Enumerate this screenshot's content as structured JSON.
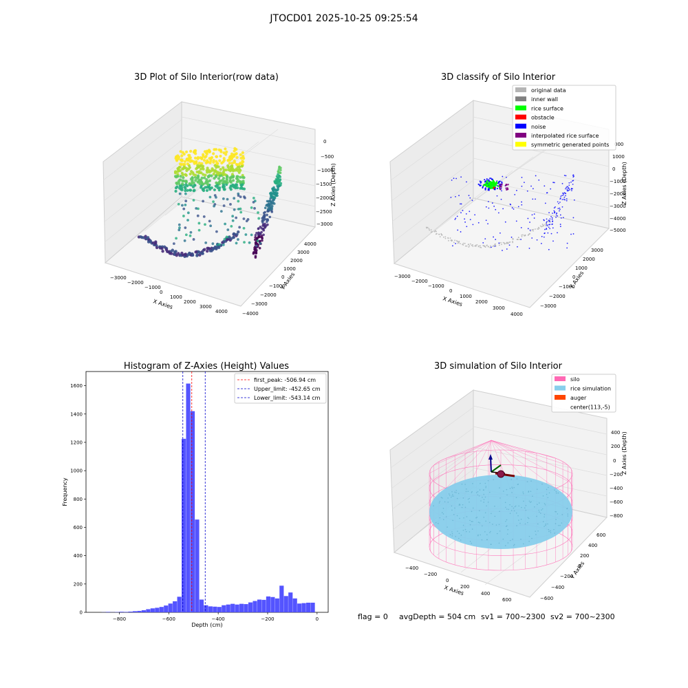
{
  "figure_title": "JTOCD01 2025-10-25 09:25:54",
  "status_line": {
    "flag": "flag = 0",
    "avg": "avgDepth = 504 cm",
    "sv1": "sv1 = 700~2300",
    "sv2": "sv2 = 700~2300"
  },
  "colors": {
    "hist_bar": "#4b4bff",
    "first_peak_line": "#ff0000",
    "limit_lines": "#0000cc",
    "silo": "#ff69b4",
    "rice_sim": "#87ceeb",
    "auger": "#ff4500",
    "original": "#b4b4b4",
    "inner_wall": "#808080",
    "rice_surface": "#00ff00",
    "obstacle": "#ff0000",
    "noise": "#0000ff",
    "interp": "#800080",
    "symmetric": "#ffff00"
  },
  "chart_data": [
    {
      "type": "scatter",
      "projection": "3d",
      "title": "3D Plot of Silo Interior(row data)",
      "xlabel": "X Axies",
      "ylabel": "Y Axies",
      "zlabel": "Z Axies (Depth)",
      "xticks": [
        "−3000",
        "−2000",
        "−1000",
        "0",
        "1000",
        "2000",
        "3000",
        "4000"
      ],
      "yticks": [
        "−4000",
        "−3000",
        "−2000",
        "−1000",
        "0",
        "1000",
        "2000",
        "3000",
        "4000"
      ],
      "zticks": [
        "0",
        "−500",
        "−1000",
        "−1500",
        "−2000",
        "−2500",
        "−3000"
      ],
      "xlim": [
        -3500,
        4500
      ],
      "ylim": [
        -4000,
        4000
      ],
      "zlim": [
        -3400,
        0
      ],
      "colormap": "viridis",
      "grid": true
    },
    {
      "type": "scatter",
      "projection": "3d",
      "title": "3D classify of Silo Interior",
      "xlabel": "X Axies",
      "ylabel": "Y Axies",
      "zlabel": "Z Axies (Depth)",
      "xticks": [
        "−3000",
        "−2000",
        "−1000",
        "0",
        "1000",
        "2000",
        "3000",
        "4000"
      ],
      "yticks": [
        "−3000",
        "−2000",
        "−1000",
        "0",
        "1000",
        "2000",
        "3000"
      ],
      "zticks": [
        "2000",
        "1000",
        "0",
        "−1000",
        "−2000",
        "−3000",
        "−4000",
        "−5000"
      ],
      "zticks_partial": [
        "000"
      ],
      "legend": [
        "original data",
        "inner wall",
        "rice surface",
        "obstacle",
        "noise",
        "interpolated rice surface",
        "symmetric generated points"
      ],
      "legend_position": "top-right",
      "grid": true
    },
    {
      "type": "bar",
      "title": "Histogram of Z-Axies (Height) Values",
      "xlabel": "Depth (cm)",
      "ylabel": "Frequency",
      "xlim": [
        -935,
        45
      ],
      "ylim": [
        0,
        1700
      ],
      "xticks": [
        -800,
        -600,
        -400,
        -200,
        0
      ],
      "yticks": [
        0,
        200,
        400,
        600,
        800,
        1000,
        1200,
        1400,
        1600
      ],
      "bin_width": 18,
      "bins_start": [
        -890,
        -872,
        -854,
        -836,
        -818,
        -800,
        -782,
        -764,
        -746,
        -728,
        -710,
        -692,
        -674,
        -656,
        -638,
        -620,
        -602,
        -584,
        -566,
        -548,
        -530,
        -512,
        -494,
        -476,
        -458,
        -440,
        -422,
        -404,
        -386,
        -368,
        -350,
        -332,
        -314,
        -296,
        -278,
        -260,
        -242,
        -224,
        -206,
        -188,
        -170,
        -152,
        -134,
        -116,
        -98,
        -80,
        -62,
        -44,
        -26
      ],
      "counts": [
        0,
        1,
        3,
        1,
        2,
        4,
        3,
        5,
        8,
        10,
        15,
        22,
        28,
        32,
        38,
        48,
        62,
        78,
        110,
        1225,
        1615,
        1420,
        655,
        90,
        50,
        42,
        40,
        38,
        50,
        55,
        60,
        55,
        60,
        58,
        70,
        80,
        90,
        88,
        112,
        108,
        98,
        188,
        115,
        140,
        98,
        62,
        65,
        68,
        68
      ],
      "vlines": [
        {
          "label": "first_peak: -506.94 cm",
          "value": -506.94,
          "color": "#ff0000"
        },
        {
          "label": "Upper_limit: -452.65 cm",
          "value": -452.65,
          "color": "#0000cc"
        },
        {
          "label": "Lower_limit: -543.14 cm",
          "value": -543.14,
          "color": "#0000cc"
        }
      ],
      "legend_position": "top-right",
      "grid": false
    },
    {
      "type": "scatter",
      "projection": "3d",
      "title": "3D simulation of Silo Interior",
      "xlabel": "X Axies",
      "ylabel": "Y Axies",
      "zlabel": "Z Axies (Depth)",
      "xticks": [
        "−400",
        "−200",
        "0",
        "200",
        "400",
        "600"
      ],
      "yticks": [
        "−600",
        "−400",
        "−200",
        "0",
        "200",
        "400",
        "600"
      ],
      "zticks": [
        "400",
        "200",
        "0",
        "−200",
        "−400",
        "−600",
        "−800"
      ],
      "legend": [
        "silo",
        "rice simulation",
        "auger",
        "center(113,-5)"
      ],
      "legend_position": "top-right",
      "grid": true
    }
  ]
}
